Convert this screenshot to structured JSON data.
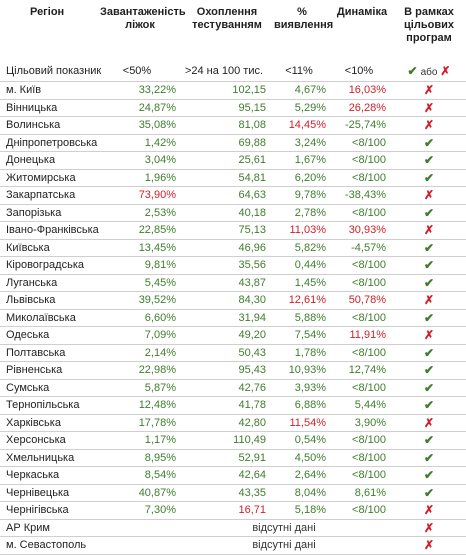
{
  "headers": [
    "Регіон",
    "Завантаженість ліжок",
    "Охоплення тестуванням",
    "% виявлення",
    "Динаміка",
    "В рамках цільових програм"
  ],
  "target": {
    "label": "Цільовий показник",
    "beds": "<50%",
    "testing": ">24 на 100 тис.",
    "detection": "<11%",
    "dynamics": "<10%",
    "or_text": "або"
  },
  "colors": {
    "green": "#3f7d2e",
    "red": "#d0202a",
    "text": "#333333"
  },
  "icons": {
    "ok": "check-icon",
    "no": "cross-icon"
  },
  "rows": [
    {
      "region": "м. Київ",
      "beds": "33,22%",
      "beds_c": "green",
      "testing": "102,15",
      "testing_c": "green",
      "detection": "4,67%",
      "detection_c": "green",
      "dynamics": "16,03%",
      "dynamics_c": "red",
      "ok": false
    },
    {
      "region": "Вінницька",
      "beds": "24,87%",
      "beds_c": "green",
      "testing": "95,15",
      "testing_c": "green",
      "detection": "5,29%",
      "detection_c": "green",
      "dynamics": "26,28%",
      "dynamics_c": "red",
      "ok": false
    },
    {
      "region": "Волинська",
      "beds": "35,08%",
      "beds_c": "green",
      "testing": "81,08",
      "testing_c": "green",
      "detection": "14,45%",
      "detection_c": "red",
      "dynamics": "-25,74%",
      "dynamics_c": "green",
      "ok": false
    },
    {
      "region": "Дніпропетровська",
      "beds": "1,42%",
      "beds_c": "green",
      "testing": "69,88",
      "testing_c": "green",
      "detection": "3,24%",
      "detection_c": "green",
      "dynamics": "<8/100",
      "dynamics_c": "green",
      "ok": true
    },
    {
      "region": "Донецька",
      "beds": "3,04%",
      "beds_c": "green",
      "testing": "25,61",
      "testing_c": "green",
      "detection": "1,67%",
      "detection_c": "green",
      "dynamics": "<8/100",
      "dynamics_c": "green",
      "ok": true
    },
    {
      "region": "Житомирська",
      "beds": "1,96%",
      "beds_c": "green",
      "testing": "54,81",
      "testing_c": "green",
      "detection": "6,20%",
      "detection_c": "green",
      "dynamics": "<8/100",
      "dynamics_c": "green",
      "ok": true
    },
    {
      "region": "Закарпатська",
      "beds": "73,90%",
      "beds_c": "red",
      "testing": "64,63",
      "testing_c": "green",
      "detection": "9,78%",
      "detection_c": "green",
      "dynamics": "-38,43%",
      "dynamics_c": "green",
      "ok": false
    },
    {
      "region": "Запорізька",
      "beds": "2,53%",
      "beds_c": "green",
      "testing": "40,18",
      "testing_c": "green",
      "detection": "2,78%",
      "detection_c": "green",
      "dynamics": "<8/100",
      "dynamics_c": "green",
      "ok": true
    },
    {
      "region": "Івано-Франківська",
      "beds": "22,85%",
      "beds_c": "green",
      "testing": "75,13",
      "testing_c": "green",
      "detection": "11,03%",
      "detection_c": "red",
      "dynamics": "30,93%",
      "dynamics_c": "red",
      "ok": false
    },
    {
      "region": "Київська",
      "beds": "13,45%",
      "beds_c": "green",
      "testing": "46,96",
      "testing_c": "green",
      "detection": "5,82%",
      "detection_c": "green",
      "dynamics": "-4,57%",
      "dynamics_c": "green",
      "ok": true
    },
    {
      "region": "Кіровоградська",
      "beds": "9,81%",
      "beds_c": "green",
      "testing": "35,56",
      "testing_c": "green",
      "detection": "0,44%",
      "detection_c": "green",
      "dynamics": "<8/100",
      "dynamics_c": "green",
      "ok": true
    },
    {
      "region": "Луганська",
      "beds": "5,45%",
      "beds_c": "green",
      "testing": "43,87",
      "testing_c": "green",
      "detection": "1,45%",
      "detection_c": "green",
      "dynamics": "<8/100",
      "dynamics_c": "green",
      "ok": true
    },
    {
      "region": "Львівська",
      "beds": "39,52%",
      "beds_c": "green",
      "testing": "84,30",
      "testing_c": "green",
      "detection": "12,61%",
      "detection_c": "red",
      "dynamics": "50,78%",
      "dynamics_c": "red",
      "ok": false
    },
    {
      "region": "Миколаївська",
      "beds": "6,60%",
      "beds_c": "green",
      "testing": "31,94",
      "testing_c": "green",
      "detection": "5,88%",
      "detection_c": "green",
      "dynamics": "<8/100",
      "dynamics_c": "green",
      "ok": true
    },
    {
      "region": "Одеська",
      "beds": "7,09%",
      "beds_c": "green",
      "testing": "49,20",
      "testing_c": "green",
      "detection": "7,54%",
      "detection_c": "green",
      "dynamics": "11,91%",
      "dynamics_c": "red",
      "ok": false
    },
    {
      "region": "Полтавська",
      "beds": "2,14%",
      "beds_c": "green",
      "testing": "50,43",
      "testing_c": "green",
      "detection": "1,78%",
      "detection_c": "green",
      "dynamics": "<8/100",
      "dynamics_c": "green",
      "ok": true
    },
    {
      "region": "Рівненська",
      "beds": "22,98%",
      "beds_c": "green",
      "testing": "95,43",
      "testing_c": "green",
      "detection": "10,93%",
      "detection_c": "green",
      "dynamics": "12,74%",
      "dynamics_c": "green",
      "ok": true
    },
    {
      "region": "Сумська",
      "beds": "5,87%",
      "beds_c": "green",
      "testing": "42,76",
      "testing_c": "green",
      "detection": "3,93%",
      "detection_c": "green",
      "dynamics": "<8/100",
      "dynamics_c": "green",
      "ok": true
    },
    {
      "region": "Тернопільська",
      "beds": "12,48%",
      "beds_c": "green",
      "testing": "41,78",
      "testing_c": "green",
      "detection": "6,88%",
      "detection_c": "green",
      "dynamics": "5,44%",
      "dynamics_c": "green",
      "ok": true
    },
    {
      "region": "Харківська",
      "beds": "17,78%",
      "beds_c": "green",
      "testing": "42,80",
      "testing_c": "green",
      "detection": "11,54%",
      "detection_c": "red",
      "dynamics": "3,90%",
      "dynamics_c": "green",
      "ok": false
    },
    {
      "region": "Херсонська",
      "beds": "1,17%",
      "beds_c": "green",
      "testing": "110,49",
      "testing_c": "green",
      "detection": "0,54%",
      "detection_c": "green",
      "dynamics": "<8/100",
      "dynamics_c": "green",
      "ok": true
    },
    {
      "region": "Хмельницька",
      "beds": "8,95%",
      "beds_c": "green",
      "testing": "52,91",
      "testing_c": "green",
      "detection": "4,50%",
      "detection_c": "green",
      "dynamics": "<8/100",
      "dynamics_c": "green",
      "ok": true
    },
    {
      "region": "Черкаська",
      "beds": "8,54%",
      "beds_c": "green",
      "testing": "42,64",
      "testing_c": "green",
      "detection": "2,64%",
      "detection_c": "green",
      "dynamics": "<8/100",
      "dynamics_c": "green",
      "ok": true
    },
    {
      "region": "Чернівецька",
      "beds": "40,87%",
      "beds_c": "green",
      "testing": "43,35",
      "testing_c": "green",
      "detection": "8,04%",
      "detection_c": "green",
      "dynamics": "8,61%",
      "dynamics_c": "green",
      "ok": true
    },
    {
      "region": "Чернігівська",
      "beds": "7,30%",
      "beds_c": "green",
      "testing": "16,71",
      "testing_c": "red",
      "detection": "5,18%",
      "detection_c": "green",
      "dynamics": "<8/100",
      "dynamics_c": "green",
      "ok": false
    },
    {
      "region": "АР Крим",
      "nodata": "відсутні дані",
      "ok": false
    },
    {
      "region": "м. Севастополь",
      "nodata": "відсутні дані",
      "ok": false
    }
  ]
}
